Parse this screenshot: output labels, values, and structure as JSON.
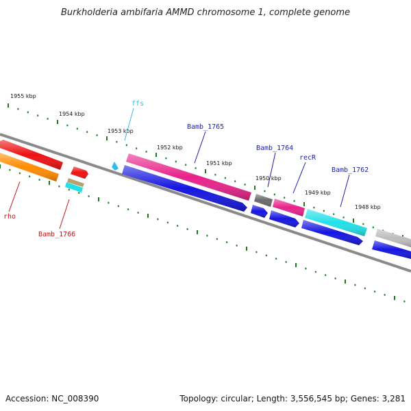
{
  "title": "Burkholderia ambifaria AMMD chromosome 1, complete genome",
  "footer": {
    "accession": "Accession: NC_008390",
    "summary": "Topology: circular; Length: 3,556,545 bp; Genes: 3,281"
  },
  "ticks": [
    "1955 kbp",
    "1954 kbp",
    "1953 kbp",
    "1952 kbp",
    "1951 kbp",
    "1950 kbp",
    "1949 kbp",
    "1948 kbp"
  ],
  "labels": [
    {
      "id": "ffs",
      "text": "ffs",
      "color": "#33bbdd"
    },
    {
      "id": "bamb1765",
      "text": "Bamb_1765",
      "color": "#1a1aaa"
    },
    {
      "id": "bamb1764",
      "text": "Bamb_1764",
      "color": "#1a1aaa"
    },
    {
      "id": "recr",
      "text": "recR",
      "color": "#1a1aaa"
    },
    {
      "id": "bamb1762",
      "text": "Bamb_1762",
      "color": "#1a1aaa"
    },
    {
      "id": "rho",
      "text": "rho",
      "color": "#cc1111"
    },
    {
      "id": "bamb1766",
      "text": "Bamb_1766",
      "color": "#cc1111"
    }
  ],
  "colors": {
    "backbone": "#808080",
    "tick_dot": "#1a7a1a",
    "red": "#ee1111",
    "orange": "#ff8c00",
    "magenta": "#e8228a",
    "blue": "#1515e0",
    "cyan": "#22e0e8",
    "gray": "#bdbdbd",
    "dark_gray": "#6a6a6a",
    "tan": "#b8a070",
    "sky": "#33bbee"
  }
}
